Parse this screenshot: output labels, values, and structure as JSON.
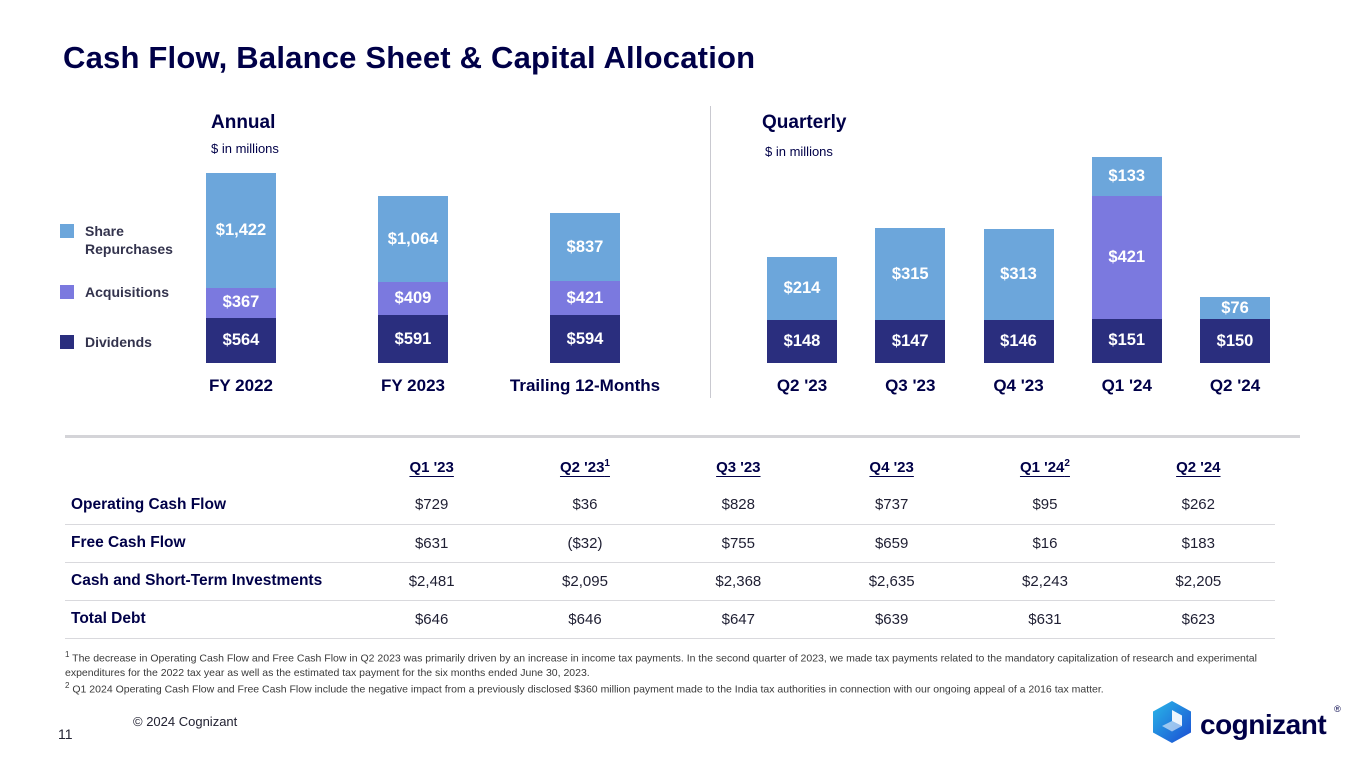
{
  "page": {
    "title": "Cash Flow, Balance Sheet & Capital Allocation",
    "page_number": "11",
    "copyright": "© 2024 Cognizant",
    "logo_text": "cognizant",
    "registered_mark": "®"
  },
  "colors": {
    "share_repurchases": "#6CA6DB",
    "acquisitions": "#7B79DF",
    "dividends": "#2A2E7E",
    "title_navy": "#000048"
  },
  "legend": [
    {
      "label": "Share Repurchases",
      "key": "share_repurchases"
    },
    {
      "label": "Acquisitions",
      "key": "acquisitions"
    },
    {
      "label": "Dividends",
      "key": "dividends"
    }
  ],
  "chart_data": [
    {
      "type": "bar",
      "stacked": true,
      "title": "Annual",
      "subtitle": "$ in millions",
      "unit": "USD millions",
      "categories": [
        "FY 2022",
        "FY 2023",
        "Trailing 12-Months"
      ],
      "series": [
        {
          "name": "Dividends",
          "key": "dividends",
          "values": [
            564,
            591,
            594
          ]
        },
        {
          "name": "Acquisitions",
          "key": "acquisitions",
          "values": [
            367,
            409,
            421
          ]
        },
        {
          "name": "Share Repurchases",
          "key": "share_repurchases",
          "values": [
            1422,
            1064,
            837
          ]
        }
      ],
      "legend_position": "left",
      "grid": false
    },
    {
      "type": "bar",
      "stacked": true,
      "title": "Quarterly",
      "subtitle": "$ in millions",
      "unit": "USD millions",
      "categories": [
        "Q2 '23",
        "Q3 '23",
        "Q4 '23",
        "Q1 '24",
        "Q2 '24"
      ],
      "series": [
        {
          "name": "Dividends",
          "key": "dividends",
          "values": [
            148,
            147,
            146,
            151,
            150
          ]
        },
        {
          "name": "Acquisitions",
          "key": "acquisitions",
          "values": [
            0,
            0,
            0,
            421,
            0
          ]
        },
        {
          "name": "Share Repurchases",
          "key": "share_repurchases",
          "values": [
            214,
            315,
            313,
            133,
            76
          ]
        }
      ],
      "legend_position": "left",
      "grid": false
    }
  ],
  "table": {
    "columns": [
      {
        "label": "Q1 '23",
        "sup": ""
      },
      {
        "label": "Q2 '23",
        "sup": "1"
      },
      {
        "label": "Q3 '23",
        "sup": ""
      },
      {
        "label": "Q4 '23",
        "sup": ""
      },
      {
        "label": "Q1 '24",
        "sup": "2"
      },
      {
        "label": "Q2 '24",
        "sup": ""
      }
    ],
    "rows": [
      {
        "label": "Operating Cash Flow",
        "values": [
          "$729",
          "$36",
          "$828",
          "$737",
          "$95",
          "$262"
        ]
      },
      {
        "label": "Free Cash Flow",
        "values": [
          "$631",
          "($32)",
          "$755",
          "$659",
          "$16",
          "$183"
        ]
      },
      {
        "label": "Cash and Short-Term Investments",
        "values": [
          "$2,481",
          "$2,095",
          "$2,368",
          "$2,635",
          "$2,243",
          "$2,205"
        ]
      },
      {
        "label": "Total Debt",
        "values": [
          "$646",
          "$646",
          "$647",
          "$639",
          "$631",
          "$623"
        ]
      }
    ]
  },
  "footnotes": [
    {
      "sup": "1",
      "text": " The decrease in Operating Cash Flow and  Free Cash Flow in Q2 2023 was primarily driven by an increase in income tax payments. In the second quarter of 2023, we made tax payments related to the mandatory capitalization of research and experimental expenditures for the 2022 tax year as well as the estimated tax payment for the six months ended June 30, 2023."
    },
    {
      "sup": "2",
      "text": " Q1 2024 Operating Cash Flow and Free Cash Flow include the negative impact from a previously disclosed $360 million payment made to the India tax authorities in connection with our ongoing appeal of a 2016 tax matter."
    }
  ]
}
